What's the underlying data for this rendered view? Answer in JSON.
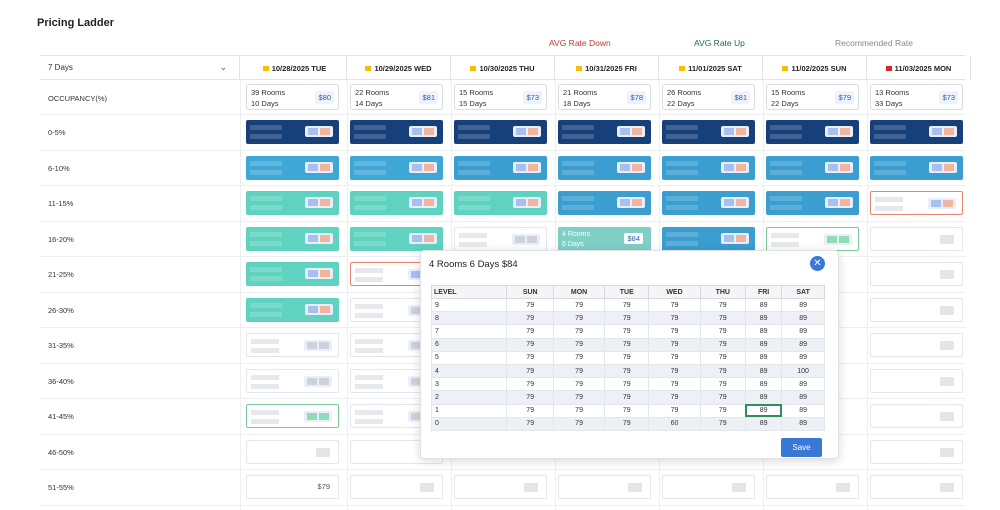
{
  "title": "Pricing Ladder",
  "legend": {
    "down": "AVG Rate Down",
    "up": "AVG Rate Up",
    "recommended": "Recommended Rate"
  },
  "days_select": "7 Days",
  "dates": [
    {
      "label": "10/28/2025 TUE",
      "flag": "yellow"
    },
    {
      "label": "10/29/2025 WED",
      "flag": "yellow"
    },
    {
      "label": "10/30/2025 THU",
      "flag": "yellow"
    },
    {
      "label": "10/31/2025 FRI",
      "flag": "yellow"
    },
    {
      "label": "11/01/2025 SAT",
      "flag": "yellow"
    },
    {
      "label": "11/02/2025 SUN",
      "flag": "yellow"
    },
    {
      "label": "11/03/2025 MON",
      "flag": "red"
    }
  ],
  "occupancy_label": "OCCUPANCY(%)",
  "occupancy": [
    {
      "rooms": "39 Rooms",
      "days": "10 Days",
      "price": "$80"
    },
    {
      "rooms": "22 Rooms",
      "days": "14 Days",
      "price": "$81"
    },
    {
      "rooms": "15 Rooms",
      "days": "15 Days",
      "price": "$73"
    },
    {
      "rooms": "21 Rooms",
      "days": "18 Days",
      "price": "$78"
    },
    {
      "rooms": "26 Rooms",
      "days": "22 Days",
      "price": "$81"
    },
    {
      "rooms": "15 Rooms",
      "days": "22 Days",
      "price": "$79"
    },
    {
      "rooms": "13 Rooms",
      "days": "33 Days",
      "price": "$73"
    }
  ],
  "ranges": [
    "0-5%",
    "6-10%",
    "11-15%",
    "16-20%",
    "21-25%",
    "26-30%",
    "31-35%",
    "36-40%",
    "41-45%",
    "46-50%",
    "51-55%"
  ],
  "selected_cell": {
    "rooms": "4 Rooms",
    "days": "6 Days",
    "price": "$84"
  },
  "bottom_price": "$79",
  "popup": {
    "title": "4 Rooms 6 Days $84",
    "headers": [
      "LEVEL",
      "SUN",
      "MON",
      "TUE",
      "WED",
      "THU",
      "FRI",
      "SAT"
    ],
    "rows": [
      [
        "9",
        "79",
        "79",
        "79",
        "79",
        "79",
        "89",
        "89"
      ],
      [
        "8",
        "79",
        "79",
        "79",
        "79",
        "79",
        "89",
        "89"
      ],
      [
        "7",
        "79",
        "79",
        "79",
        "79",
        "79",
        "89",
        "89"
      ],
      [
        "6",
        "79",
        "79",
        "79",
        "79",
        "79",
        "89",
        "89"
      ],
      [
        "5",
        "79",
        "79",
        "79",
        "79",
        "79",
        "89",
        "89"
      ],
      [
        "4",
        "79",
        "79",
        "79",
        "79",
        "79",
        "89",
        "100"
      ],
      [
        "3",
        "79",
        "79",
        "79",
        "79",
        "79",
        "89",
        "89"
      ],
      [
        "2",
        "79",
        "79",
        "79",
        "79",
        "79",
        "89",
        "89"
      ],
      [
        "1",
        "79",
        "79",
        "79",
        "79",
        "79",
        "89",
        "89"
      ],
      [
        "0",
        "79",
        "79",
        "79",
        "60",
        "79",
        "89",
        "89"
      ]
    ],
    "save_label": "Save"
  }
}
